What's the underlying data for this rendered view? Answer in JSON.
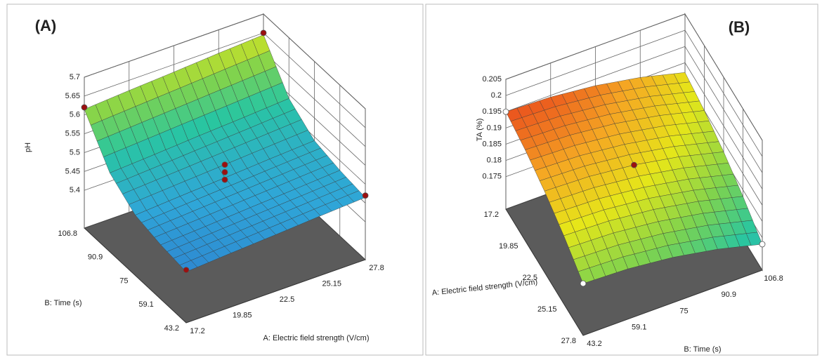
{
  "chart_data": [
    {
      "type": "surface",
      "title": "(A)",
      "xlabel": "A: Electric field strength (V/cm)",
      "ylabel": "B: Time (s)",
      "zlabel": "pH",
      "xticks": [
        17.2,
        19.85,
        22.5,
        25.15,
        27.8
      ],
      "xlim": [
        17.2,
        27.8
      ],
      "yticks": [
        43.2,
        59.1,
        75,
        90.9,
        106.8
      ],
      "ylim": [
        43.2,
        106.8
      ],
      "zticks": [
        5.4,
        5.45,
        5.5,
        5.55,
        5.6,
        5.65,
        5.7
      ],
      "zlim": [
        5.3,
        5.7
      ],
      "z": [
        [
          5.435,
          5.443,
          5.45,
          5.458,
          5.465
        ],
        [
          5.444,
          5.451,
          5.459,
          5.466,
          5.474
        ],
        [
          5.46,
          5.468,
          5.475,
          5.483,
          5.49
        ],
        [
          5.509,
          5.516,
          5.524,
          5.531,
          5.539
        ],
        [
          5.615,
          5.623,
          5.63,
          5.638,
          5.645
        ]
      ],
      "points": {
        "x": [
          17.2,
          27.8,
          17.2,
          27.8,
          22.5,
          22.5,
          22.5
        ],
        "y": [
          43.2,
          43.2,
          106.8,
          106.8,
          75,
          75,
          75
        ],
        "z": [
          5.44,
          5.47,
          5.62,
          5.65,
          5.47,
          5.49,
          5.51
        ],
        "colors": [
          "#9b1010",
          "#9b1010",
          "#9b1010",
          "#9b1010",
          "#9b1010",
          "#9b1010",
          "#9b1010"
        ]
      }
    },
    {
      "type": "surface",
      "title": "(B)",
      "xlabel": "B: Time (s)",
      "ylabel": "A: Electric field strength (V/cm)",
      "zlabel": "TA (%)",
      "xticks": [
        43.2,
        59.1,
        75,
        90.9,
        106.8
      ],
      "xlim": [
        43.2,
        106.8
      ],
      "yticks": [
        17.2,
        19.85,
        22.5,
        25.15,
        27.8
      ],
      "ylim": [
        27.8,
        17.2
      ],
      "zticks": [
        0.175,
        0.18,
        0.185,
        0.19,
        0.195,
        0.2,
        0.205
      ],
      "zlim": [
        0.165,
        0.205
      ],
      "z": [
        [
          0.195,
          0.1945,
          0.193,
          0.1905,
          0.187
        ],
        [
          0.193,
          0.1925,
          0.191,
          0.1885,
          0.185
        ],
        [
          0.19,
          0.1895,
          0.188,
          0.1855,
          0.182
        ],
        [
          0.186,
          0.1855,
          0.184,
          0.1815,
          0.178
        ],
        [
          0.181,
          0.1805,
          0.179,
          0.1765,
          0.173
        ]
      ],
      "points": {
        "x": [
          43.2,
          43.2,
          106.8,
          75
        ],
        "y": [
          17.2,
          27.8,
          27.8,
          22.5
        ],
        "z": [
          0.195,
          0.181,
          0.173,
          0.188
        ],
        "colors": [
          "#ffffff",
          "#ffffff",
          "#ffffff",
          "#9b1010"
        ]
      }
    }
  ]
}
